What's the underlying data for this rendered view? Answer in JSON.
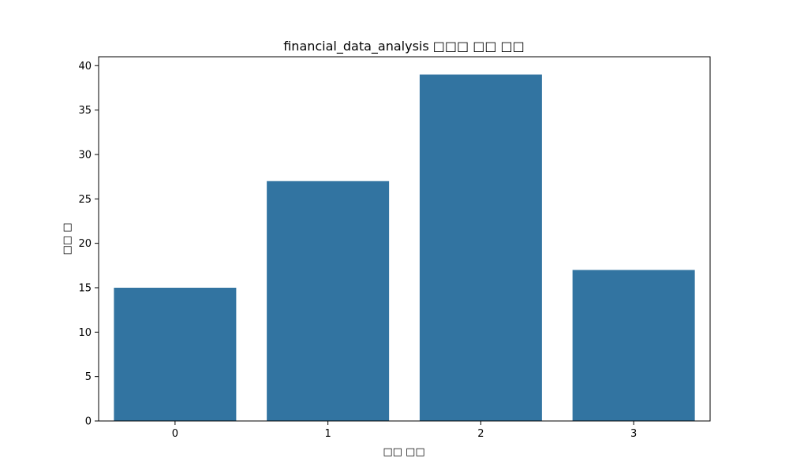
{
  "chart_data": {
    "type": "bar",
    "title": "financial_data_analysis □□□ □□ □□",
    "xlabel": "□□ □□",
    "ylabel": "□□ □",
    "categories": [
      "0",
      "1",
      "2",
      "3"
    ],
    "values": [
      15,
      27,
      39,
      17
    ],
    "ylim": [
      0,
      41
    ],
    "yticks": [
      0,
      5,
      10,
      15,
      20,
      25,
      30,
      35,
      40
    ],
    "grid": false,
    "legend": "none",
    "bar_color": "#3274a1"
  }
}
